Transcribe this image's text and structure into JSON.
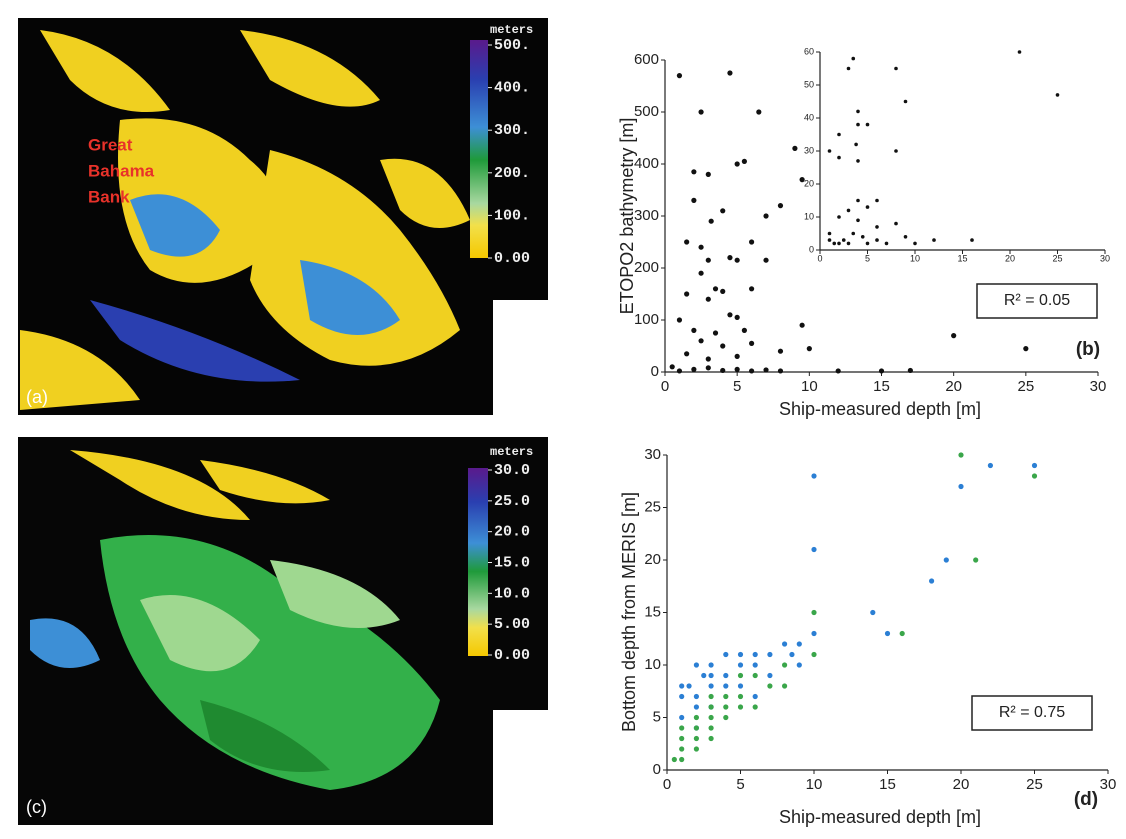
{
  "chart_data": [
    {
      "type": "scatter",
      "xlabel": "Ship-measured depth  [m]",
      "ylabel": "ETOPO2 bathymetry  [m]",
      "xlim": [
        0,
        30
      ],
      "ylim": [
        0,
        600
      ],
      "xticks": [
        0,
        5,
        10,
        15,
        20,
        25,
        30
      ],
      "yticks": [
        0,
        100,
        200,
        300,
        400,
        500,
        600
      ],
      "annotations": [
        "R² = 0.05"
      ],
      "panel_label": "(b)",
      "series": [
        {
          "color": "#111111",
          "x": [
            1,
            4.5,
            2.5,
            6.5,
            5,
            5.5,
            2,
            3,
            9,
            9.5,
            2,
            4,
            7,
            8,
            3.2,
            1.5,
            2.5,
            6,
            4.5,
            5,
            3,
            7,
            2.5,
            1.5,
            3.5,
            4,
            6,
            3,
            4.5,
            5,
            1,
            2,
            3.5,
            5.5,
            9.5,
            2.5,
            4,
            6,
            1.5,
            3,
            5,
            8,
            10,
            0.5,
            2,
            3,
            4,
            5,
            6,
            7,
            8,
            1,
            12,
            15,
            17,
            20,
            25
          ],
          "values": [
            570,
            575,
            500,
            500,
            400,
            405,
            385,
            380,
            430,
            370,
            330,
            310,
            300,
            320,
            290,
            250,
            240,
            250,
            220,
            215,
            215,
            215,
            190,
            150,
            160,
            155,
            160,
            140,
            110,
            105,
            100,
            80,
            75,
            80,
            90,
            60,
            50,
            55,
            35,
            25,
            30,
            40,
            45,
            10,
            5,
            8,
            3,
            5,
            2,
            4,
            2,
            2,
            2,
            2,
            3,
            70,
            45
          ]
        }
      ]
    },
    {
      "type": "scatter",
      "xlim": [
        0,
        30
      ],
      "ylim": [
        0,
        60
      ],
      "xticks": [
        0,
        5,
        10,
        15,
        20,
        25,
        30
      ],
      "yticks": [
        0,
        10,
        20,
        30,
        40,
        50,
        60
      ],
      "series": [
        {
          "color": "#111111",
          "x": [
            1,
            2,
            2,
            3,
            3.5,
            4,
            4,
            3.8,
            5,
            4,
            8,
            9,
            8,
            21,
            25,
            2,
            3,
            4,
            5,
            6,
            1,
            1.5,
            2,
            2.5,
            3,
            3.5,
            4.5,
            5,
            6,
            7,
            8,
            9,
            10,
            12,
            16,
            4,
            6,
            1
          ],
          "values": [
            30,
            35,
            28,
            55,
            58,
            42,
            38,
            32,
            38,
            27,
            55,
            45,
            30,
            60,
            47,
            10,
            12,
            15,
            13,
            15,
            3,
            2,
            2,
            3,
            2,
            5,
            4,
            2,
            3,
            2,
            8,
            4,
            2,
            3,
            3,
            9,
            7,
            5
          ]
        }
      ]
    },
    {
      "type": "scatter",
      "xlabel": "Ship-measured depth  [m]",
      "ylabel": "Bottom depth from MERIS  [m]",
      "xlim": [
        0,
        30
      ],
      "ylim": [
        0,
        30
      ],
      "xticks": [
        0,
        5,
        10,
        15,
        20,
        25,
        30
      ],
      "yticks": [
        0,
        5,
        10,
        15,
        20,
        25,
        30
      ],
      "annotations": [
        "R² = 0.75"
      ],
      "panel_label": "(d)",
      "series": [
        {
          "color": "#2b7fd4",
          "x": [
            10,
            22,
            25,
            20,
            10,
            19,
            18,
            14,
            15,
            10,
            9,
            8,
            8.5,
            7,
            6,
            5,
            4,
            3,
            2,
            1,
            1.5,
            2.5,
            3,
            4,
            5,
            6,
            7,
            9,
            3,
            4,
            5,
            1,
            2,
            6,
            2,
            3,
            1,
            2
          ],
          "values": [
            28,
            29,
            29,
            27,
            21,
            20,
            18,
            15,
            13,
            13,
            12,
            12,
            11,
            11,
            11,
            11,
            11,
            10,
            10,
            8,
            8,
            9,
            9,
            9,
            10,
            10,
            9,
            10,
            8,
            8,
            8,
            7,
            7,
            7,
            6,
            6,
            5,
            4
          ]
        },
        {
          "color": "#3aa64a",
          "x": [
            20,
            25,
            21,
            10,
            16,
            10,
            8,
            8,
            7,
            6,
            5,
            4,
            5,
            3,
            3,
            4,
            5,
            6,
            2,
            3,
            4,
            1,
            2,
            3,
            1,
            2,
            2,
            1,
            1,
            0.5,
            3
          ],
          "values": [
            30,
            28,
            20,
            15,
            13,
            11,
            10,
            8,
            8,
            9,
            9,
            7,
            7,
            7,
            6,
            6,
            6,
            6,
            5,
            5,
            5,
            4,
            4,
            4,
            3,
            3,
            2,
            2,
            1,
            1,
            3
          ]
        }
      ]
    }
  ],
  "maps": [
    {
      "panel_label": "(a)",
      "unit": "meters",
      "annotation": [
        "Great",
        "Bahama",
        "Bank"
      ],
      "clim": [
        0,
        500
      ],
      "ticks": [
        {
          "value": 500,
          "label": "500."
        },
        {
          "value": 400,
          "label": "400."
        },
        {
          "value": 300,
          "label": "300."
        },
        {
          "value": 200,
          "label": "200."
        },
        {
          "value": 100,
          "label": "100."
        },
        {
          "value": 0,
          "label": "0.00"
        }
      ]
    },
    {
      "panel_label": "(c)",
      "unit": "meters",
      "clim": [
        0,
        30
      ],
      "ticks": [
        {
          "value": 30,
          "label": "30.0"
        },
        {
          "value": 25,
          "label": "25.0"
        },
        {
          "value": 20,
          "label": "20.0"
        },
        {
          "value": 15,
          "label": "15.0"
        },
        {
          "value": 10,
          "label": "10.0"
        },
        {
          "value": 5,
          "label": "5.00"
        },
        {
          "value": 0,
          "label": "0.00"
        }
      ]
    }
  ]
}
